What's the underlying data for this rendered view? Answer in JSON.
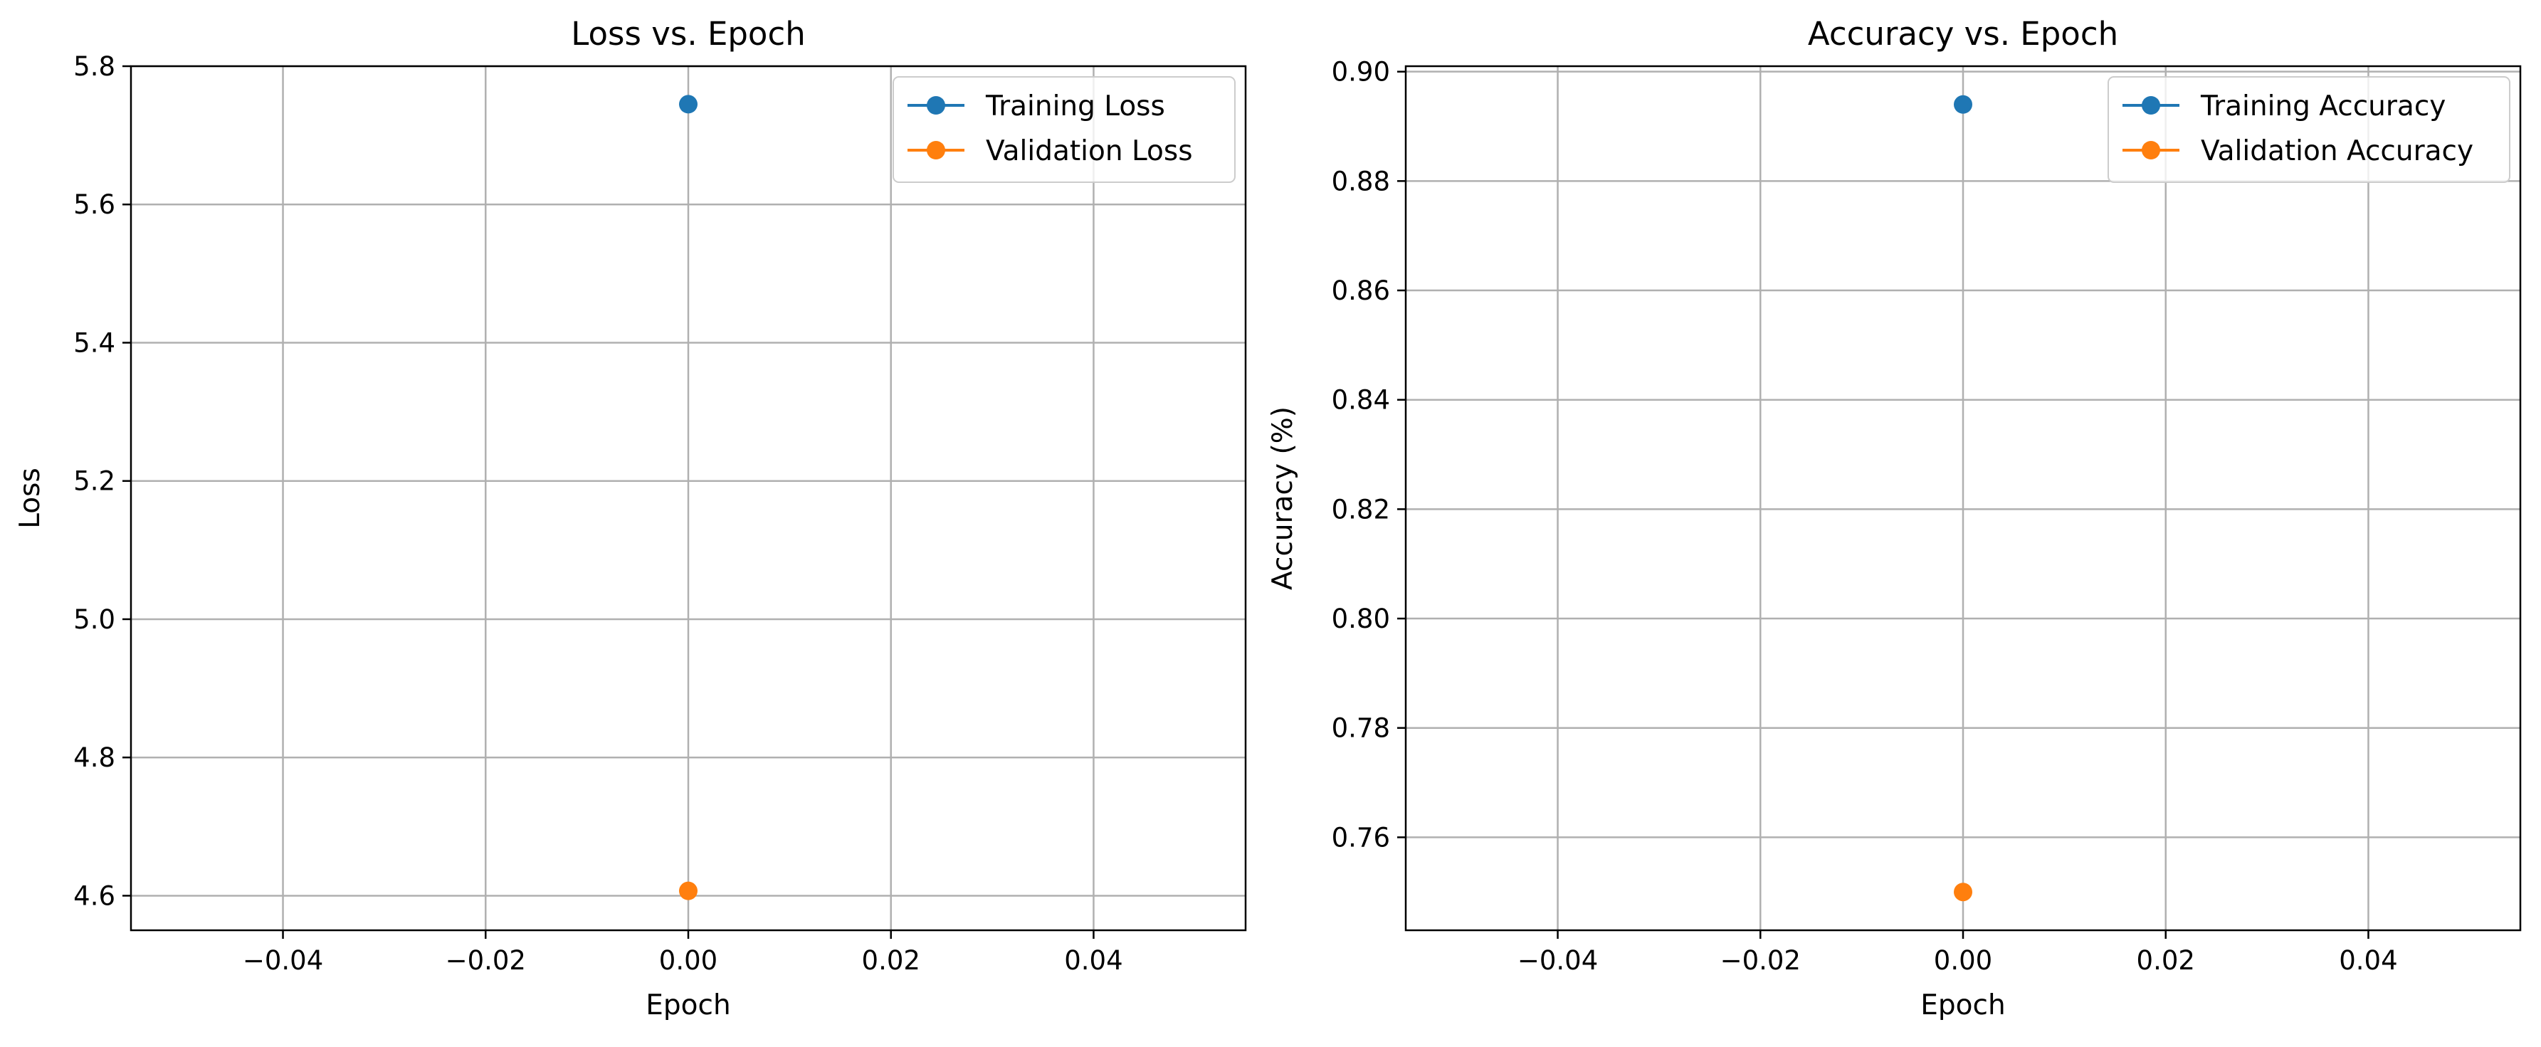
{
  "chart_data": [
    {
      "type": "line",
      "title": "Loss vs. Epoch",
      "xlabel": "Epoch",
      "ylabel": "Loss",
      "xlim": [
        -0.055,
        0.055
      ],
      "ylim": [
        4.55,
        5.8
      ],
      "xticks": [
        -0.04,
        -0.02,
        0.0,
        0.02,
        0.04
      ],
      "xtick_labels": [
        "−0.04",
        "−0.02",
        "0.00",
        "0.02",
        "0.04"
      ],
      "yticks": [
        4.6,
        4.8,
        5.0,
        5.2,
        5.4,
        5.6,
        5.8
      ],
      "ytick_labels": [
        "4.6",
        "4.8",
        "5.0",
        "5.2",
        "5.4",
        "5.6",
        "5.8"
      ],
      "grid": true,
      "legend_position": "top-right",
      "series": [
        {
          "name": "Training Loss",
          "color": "#1f77b4",
          "x": [
            0
          ],
          "y": [
            5.745
          ]
        },
        {
          "name": "Validation Loss",
          "color": "#ff7f0e",
          "x": [
            0
          ],
          "y": [
            4.607
          ]
        }
      ]
    },
    {
      "type": "line",
      "title": "Accuracy vs. Epoch",
      "xlabel": "Epoch",
      "ylabel": "Accuracy (%)",
      "xlim": [
        -0.055,
        0.055
      ],
      "ylim": [
        0.743,
        0.901
      ],
      "xticks": [
        -0.04,
        -0.02,
        0.0,
        0.02,
        0.04
      ],
      "xtick_labels": [
        "−0.04",
        "−0.02",
        "0.00",
        "0.02",
        "0.04"
      ],
      "yticks": [
        0.76,
        0.78,
        0.8,
        0.82,
        0.84,
        0.86,
        0.88,
        0.9
      ],
      "ytick_labels": [
        "0.76",
        "0.78",
        "0.80",
        "0.82",
        "0.84",
        "0.86",
        "0.88",
        "0.90"
      ],
      "grid": true,
      "legend_position": "top-right",
      "series": [
        {
          "name": "Training Accuracy",
          "color": "#1f77b4",
          "x": [
            0
          ],
          "y": [
            0.894
          ]
        },
        {
          "name": "Validation Accuracy",
          "color": "#ff7f0e",
          "x": [
            0
          ],
          "y": [
            0.75
          ]
        }
      ]
    }
  ]
}
